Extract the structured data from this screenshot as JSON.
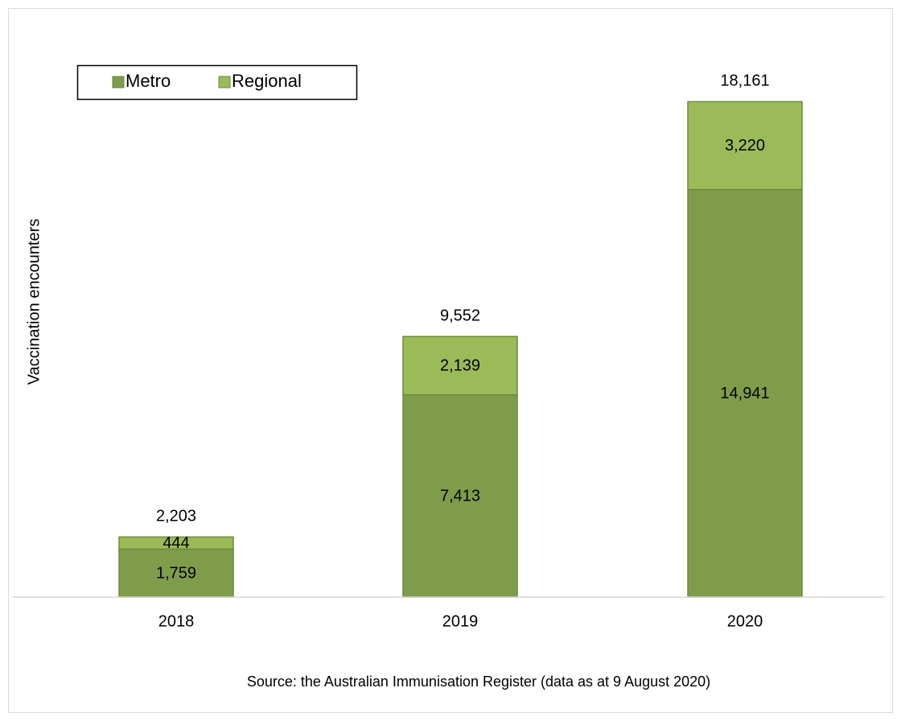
{
  "chart_data": {
    "type": "stacked_bar",
    "y_label": "Vaccination encounters",
    "source": "Source: the Australian Immunisation Register (data as at 9 August 2020)",
    "categories": [
      "2018",
      "2019",
      "2020"
    ],
    "series": [
      {
        "name": "Metro",
        "color": "#7f9c4a",
        "values": [
          1759,
          7413,
          14941
        ],
        "value_labels": [
          "1,759",
          "7,413",
          "14,941"
        ]
      },
      {
        "name": "Regional",
        "color": "#9bbb59",
        "values": [
          444,
          2139,
          3220
        ],
        "value_labels": [
          "444",
          "2,139",
          "3,220"
        ]
      }
    ],
    "totals": [
      2203,
      9552,
      18161
    ],
    "total_labels": [
      "2,203",
      "9,552",
      "18,161"
    ],
    "ylim": [
      0,
      20000
    ],
    "legend": "top-left"
  }
}
